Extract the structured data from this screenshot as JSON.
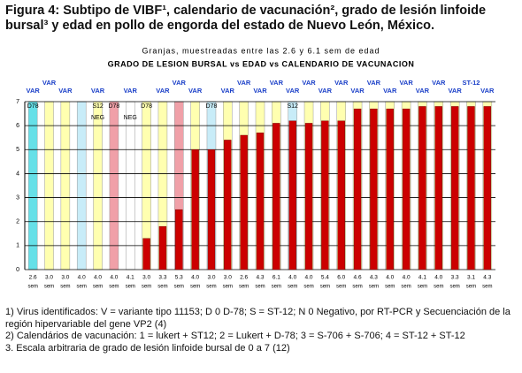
{
  "caption": {
    "title": "Figura 4: Subtipo de VIBF¹, calendario de vacunación², grado de lesión linfoide bursal³ y edad en pollo de engorda del estado de Nuevo León, México."
  },
  "chart_data": {
    "type": "bar",
    "subtitle": "Granjas, muestreadas entre las 2.6 y 6.1 sem de edad",
    "title": "GRADO DE LESION BURSAL vs EDAD vs CALENDARIO DE VACUNACION",
    "categories": [
      "2.6",
      "3.0",
      "3.0",
      "4.0",
      "4.0",
      "4.0",
      "4.1",
      "3.0",
      "3.3",
      "5.3",
      "4.0",
      "3.0",
      "3.0",
      "2.6",
      "4.3",
      "6.1",
      "4.0",
      "4.0",
      "5.4",
      "6.0",
      "4.6",
      "4.3",
      "4.0",
      "4.0",
      "4.1",
      "4.0",
      "3.3",
      "3.1",
      "4.3"
    ],
    "unit_label": "sem",
    "values": [
      0,
      0,
      0,
      0,
      0,
      0,
      0,
      1.3,
      1.8,
      2.5,
      5,
      5,
      5.4,
      5.6,
      5.7,
      6.1,
      6.2,
      6.1,
      6.2,
      6.2,
      6.7,
      6.7,
      6.7,
      6.7,
      6.8,
      6.8,
      6.8,
      6.8,
      6.8
    ],
    "color": "#cc0000",
    "background_colors": [
      "#66e0e8",
      "#ffffb0",
      "#ffffb0",
      "#c8ecf8",
      "#ffffb0",
      "#f0a0a8",
      "#ffffff",
      "#ffffb0",
      "#ffffb0",
      "#f0a0a8",
      "#ffffb0",
      "#c8ecf8",
      "#ffffb0",
      "#ffffb0",
      "#ffffb0",
      "#ffffb0",
      "#c8ecf8",
      "#ffffb0",
      "#ffffb0",
      "#ffffb0",
      "#ffffb0",
      "#ffffb0",
      "#ffffb0",
      "#ffffb0",
      "#ffffb0",
      "#ffffb0",
      "#ffffb0",
      "#ffffb0",
      "#ffffb0"
    ],
    "top_labels": [
      "VAR",
      "VAR",
      "VAR",
      null,
      "VAR",
      null,
      "VAR",
      null,
      "VAR",
      "VAR",
      "VAR",
      null,
      "VAR",
      "VAR",
      "VAR",
      "VAR",
      "VAR",
      "VAR",
      "VAR",
      "VAR",
      "VAR",
      "VAR",
      "VAR",
      "VAR",
      "VAR",
      "VAR",
      "VAR",
      "ST-12",
      "VAR"
    ],
    "inner_labels": [
      {
        "index": 0,
        "text": "D78"
      },
      {
        "index": 4,
        "text": "S12"
      },
      {
        "index": 5,
        "text": "D78"
      },
      {
        "index": 7,
        "text": "D78"
      },
      {
        "index": 11,
        "text": "D78"
      },
      {
        "index": 16,
        "text": "S12"
      }
    ],
    "neg_labels": [
      {
        "index": 4,
        "text": "NEG"
      },
      {
        "index": 6,
        "text": "NEG"
      }
    ],
    "ylim": [
      0,
      7
    ],
    "yticks": [
      0,
      1,
      2,
      3,
      4,
      5,
      6,
      7
    ],
    "grid": true
  },
  "footnotes": [
    "1) Virus identificados: V = variante tipo 11153; D 0 D-78; S = ST-12; N 0 Negativo, por RT-PCR y Secuenciación de la",
    "región hipervariable del gene VP2 (4)",
    "2) Calendários de vacunación: 1 = lukert + ST12; 2 = Lukert + D-78; 3 = S-706 + S-706; 4 = ST-12 + ST-12",
    "3. Escala arbitraria de grado de lesión linfoide bursal de 0 a 7 (12)"
  ]
}
